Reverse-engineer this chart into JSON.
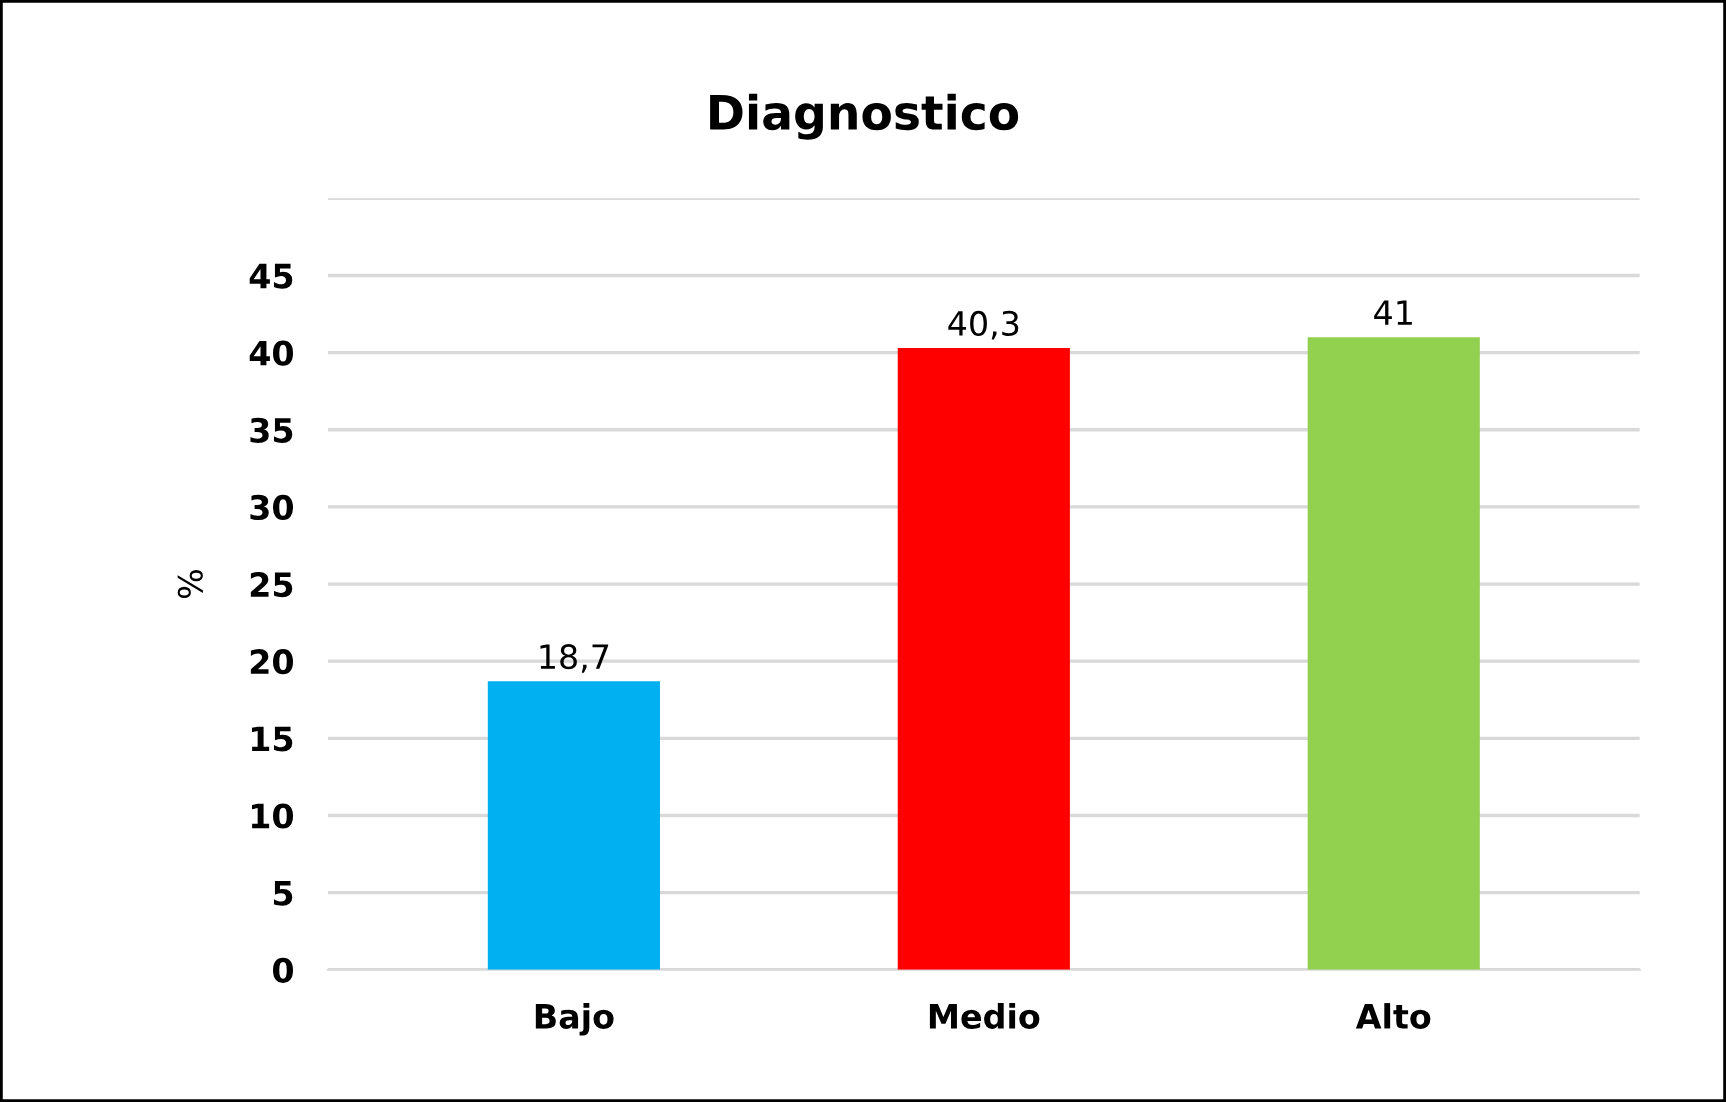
{
  "chart_data": {
    "type": "bar",
    "title": "Diagnostico",
    "ylabel": "%",
    "categories": [
      "Bajo",
      "Medio",
      "Alto"
    ],
    "values": [
      18.7,
      40.3,
      41
    ],
    "colors": [
      "#00b0f0",
      "#ff0000",
      "#92d050"
    ],
    "value_labels": [
      "18,7",
      "40,3",
      "41"
    ],
    "ylim": [
      0,
      50
    ],
    "yticks": [
      0,
      5,
      10,
      15,
      20,
      25,
      30,
      35,
      40,
      45,
      {
        "value": 50,
        "label": null
      }
    ],
    "grid": "y",
    "legend": false
  }
}
